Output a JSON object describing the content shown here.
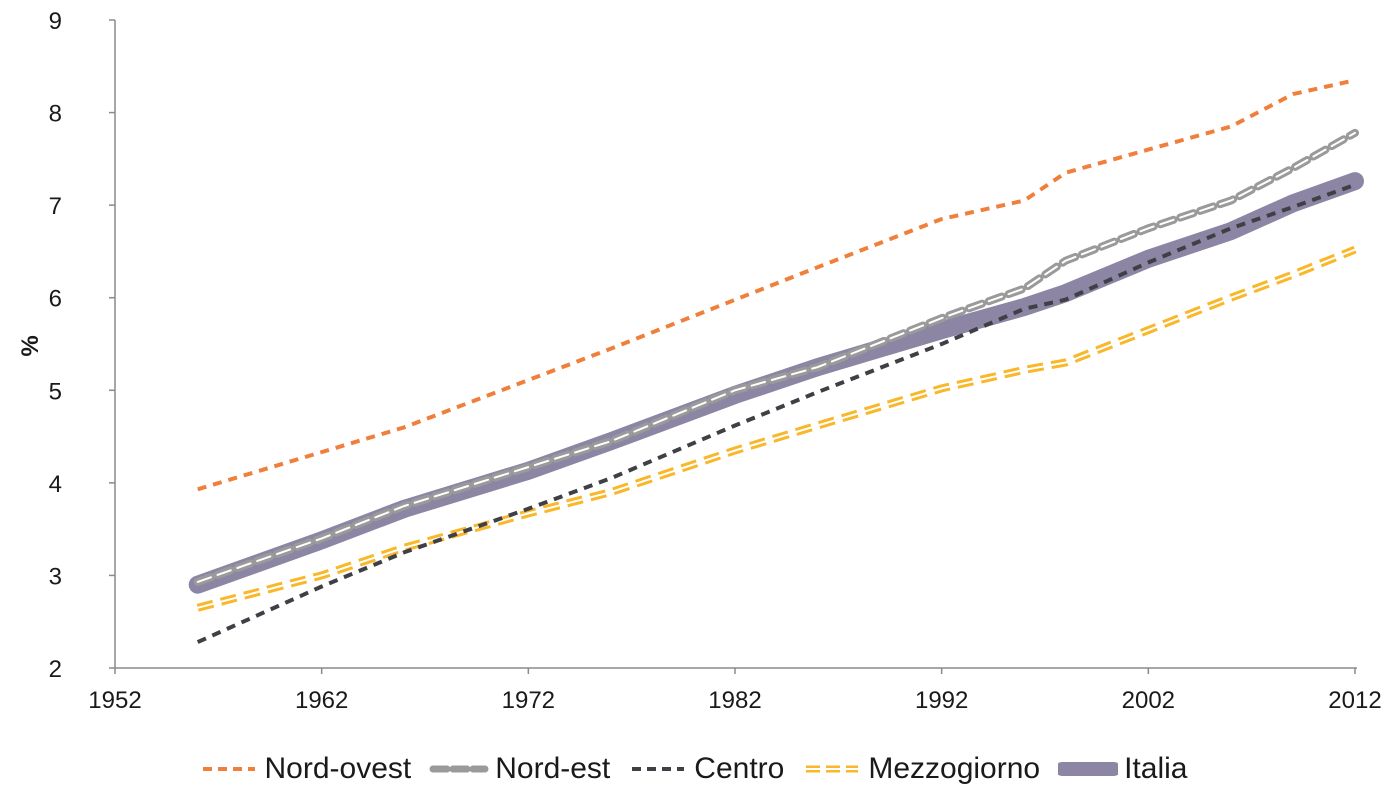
{
  "chart_data": {
    "type": "line",
    "title": "",
    "xlabel": "",
    "ylabel": "%",
    "xlim": [
      1952,
      2012
    ],
    "ylim": [
      2,
      9
    ],
    "x_ticks": [
      1952,
      1962,
      1972,
      1982,
      1992,
      2002,
      2012
    ],
    "y_ticks": [
      2,
      3,
      4,
      5,
      6,
      7,
      8,
      9
    ],
    "grid": false,
    "legend_position": "bottom",
    "series": [
      {
        "name": "Nord-ovest",
        "color": "#F07F3C",
        "style": "dashed",
        "points": [
          [
            1956,
            3.93
          ],
          [
            1966,
            4.6
          ],
          [
            1976,
            5.45
          ],
          [
            1986,
            6.33
          ],
          [
            1992,
            6.85
          ],
          [
            1996,
            7.05
          ],
          [
            1998,
            7.35
          ],
          [
            2002,
            7.6
          ],
          [
            2006,
            7.85
          ],
          [
            2009,
            8.2
          ],
          [
            2012,
            8.35
          ]
        ]
      },
      {
        "name": "Nord-est",
        "color": "#9A9A9A",
        "style": "dashed-thick",
        "points": [
          [
            1956,
            2.93
          ],
          [
            1962,
            3.4
          ],
          [
            1966,
            3.75
          ],
          [
            1972,
            4.17
          ],
          [
            1976,
            4.45
          ],
          [
            1982,
            5.0
          ],
          [
            1986,
            5.25
          ],
          [
            1992,
            5.78
          ],
          [
            1996,
            6.1
          ],
          [
            1998,
            6.4
          ],
          [
            2002,
            6.75
          ],
          [
            2006,
            7.05
          ],
          [
            2009,
            7.4
          ],
          [
            2012,
            7.78
          ]
        ]
      },
      {
        "name": "Centro",
        "color": "#3F3F46",
        "style": "dashed",
        "points": [
          [
            1956,
            2.28
          ],
          [
            1962,
            2.88
          ],
          [
            1966,
            3.25
          ],
          [
            1972,
            3.72
          ],
          [
            1976,
            4.05
          ],
          [
            1982,
            4.62
          ],
          [
            1986,
            4.98
          ],
          [
            1992,
            5.5
          ],
          [
            1996,
            5.88
          ],
          [
            1998,
            5.98
          ],
          [
            2002,
            6.38
          ],
          [
            2006,
            6.75
          ],
          [
            2009,
            6.98
          ],
          [
            2012,
            7.22
          ]
        ]
      },
      {
        "name": "Mezzogiorno",
        "color": "#F9B72A",
        "style": "double-dashed",
        "points": [
          [
            1956,
            2.65
          ],
          [
            1962,
            3.0
          ],
          [
            1966,
            3.3
          ],
          [
            1972,
            3.67
          ],
          [
            1976,
            3.9
          ],
          [
            1982,
            4.35
          ],
          [
            1986,
            4.62
          ],
          [
            1992,
            5.02
          ],
          [
            1996,
            5.22
          ],
          [
            1998,
            5.3
          ],
          [
            2002,
            5.65
          ],
          [
            2006,
            6.0
          ],
          [
            2009,
            6.25
          ],
          [
            2012,
            6.52
          ]
        ]
      },
      {
        "name": "Italia",
        "color": "#8C86A4",
        "style": "thick-solid",
        "points": [
          [
            1956,
            2.9
          ],
          [
            1962,
            3.38
          ],
          [
            1966,
            3.72
          ],
          [
            1972,
            4.13
          ],
          [
            1976,
            4.45
          ],
          [
            1982,
            4.95
          ],
          [
            1986,
            5.25
          ],
          [
            1992,
            5.65
          ],
          [
            1996,
            5.9
          ],
          [
            1998,
            6.05
          ],
          [
            2002,
            6.42
          ],
          [
            2006,
            6.72
          ],
          [
            2009,
            7.02
          ],
          [
            2012,
            7.26
          ]
        ]
      }
    ]
  }
}
